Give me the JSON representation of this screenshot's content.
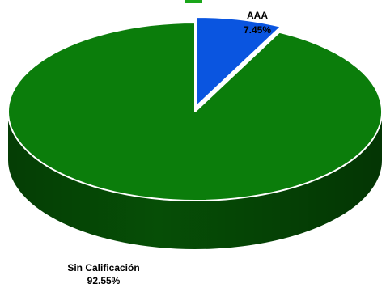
{
  "chart_data": {
    "type": "pie",
    "title": "",
    "style": "3d",
    "slices": [
      {
        "label": "AAA",
        "value": 7.45,
        "display": "7.45%",
        "color": "#0a55e0",
        "exploded": true
      },
      {
        "label": "Sin Calificación",
        "value": 92.55,
        "display": "92.55%",
        "color": "#0b7d0b",
        "exploded": false
      }
    ],
    "legend": "none"
  },
  "colors": {
    "green_top": "#0b7d0b",
    "green_side": "#065206",
    "blue_top": "#0a55e0",
    "blue_side": "#073e9e",
    "title_fragment": "#1aa61a"
  }
}
